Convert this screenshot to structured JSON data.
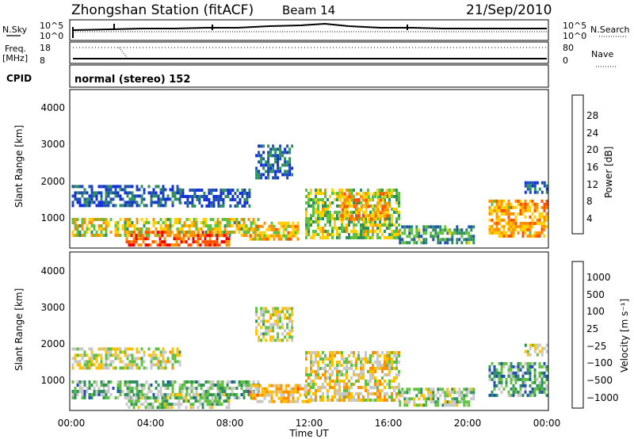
{
  "header": {
    "station": "Zhongshan Station (fitACF)",
    "beam": "Beam 14",
    "date": "21/Sep/2010"
  },
  "aux_panels": {
    "nsky_label": "N.Sky",
    "nsky_ticks": [
      "10^5",
      "10^0"
    ],
    "nsearch_label": "N.Search",
    "nsearch_ticks": [
      "10^5",
      "10^0"
    ],
    "freq_label": "Freq.",
    "freq_unit": "[MHz]",
    "freq_ticks": [
      "18",
      "8"
    ],
    "nave_label": "Nave",
    "nave_ticks": [
      "80",
      "0"
    ],
    "cpid_label": "CPID",
    "cpid_value": "normal (stereo) 152"
  },
  "chart_data": [
    {
      "type": "heatmap",
      "quantity": "power",
      "ylabel": "Slant Range [km]",
      "yticks": [
        "4000",
        "3000",
        "2000",
        "1000"
      ],
      "ylim": [
        180,
        4500
      ],
      "x_range_hours": [
        0,
        24
      ],
      "colorbar_label": "Power [dB]",
      "colorbar_ticks": [
        "28",
        "24",
        "20",
        "16",
        "12",
        "8",
        "4"
      ],
      "colorbar_range": [
        0,
        30
      ],
      "colors": [
        "#1030e0",
        "#2050b0",
        "#2f8f5f",
        "#60c040",
        "#ffd000",
        "#ff9000",
        "#ff5000",
        "#ee0000"
      ],
      "regions": [
        {
          "t": [
            0.1,
            5.5
          ],
          "r": [
            1300,
            1900
          ],
          "v": 6
        },
        {
          "t": [
            5.5,
            9.0
          ],
          "r": [
            1350,
            1800
          ],
          "v": 5
        },
        {
          "t": [
            0.1,
            9.5
          ],
          "r": [
            500,
            1000
          ],
          "v": 16
        },
        {
          "t": [
            2.8,
            8.0
          ],
          "r": [
            250,
            650
          ],
          "v": 24
        },
        {
          "t": [
            9.0,
            11.5
          ],
          "r": [
            400,
            900
          ],
          "v": 18
        },
        {
          "t": [
            9.3,
            11.2
          ],
          "r": [
            2100,
            3000
          ],
          "v": 6
        },
        {
          "t": [
            11.8,
            16.5
          ],
          "r": [
            500,
            1800
          ],
          "v": 14
        },
        {
          "t": [
            13.5,
            16.0
          ],
          "r": [
            1000,
            1700
          ],
          "v": 20
        },
        {
          "t": [
            16.5,
            20.2
          ],
          "r": [
            300,
            800
          ],
          "v": 10
        },
        {
          "t": [
            21.0,
            23.9
          ],
          "r": [
            500,
            1500
          ],
          "v": 20
        },
        {
          "t": [
            22.8,
            23.9
          ],
          "r": [
            1700,
            2000
          ],
          "v": 6
        }
      ]
    },
    {
      "type": "heatmap",
      "quantity": "velocity",
      "ylabel": "Slant Range [km]",
      "yticks": [
        "4000",
        "3000",
        "2000",
        "1000"
      ],
      "ylim": [
        180,
        4500
      ],
      "x_range_hours": [
        0,
        24
      ],
      "colorbar_label": "Velocity [m s⁻¹]",
      "colorbar_ticks": [
        "1000",
        "500",
        "100",
        "25",
        "−25",
        "−100",
        "−500",
        "−1000"
      ],
      "colorbar_range": [
        -1200,
        1200
      ],
      "colors": [
        "#ee0000",
        "#ff5000",
        "#ff9000",
        "#ffc000",
        "#c8c8c8",
        "#60c040",
        "#2f8f5f",
        "#2050b0",
        "#1030e0"
      ],
      "regions": [
        {
          "t": [
            0.1,
            5.5
          ],
          "r": [
            1300,
            1900
          ],
          "v": 0
        },
        {
          "t": [
            9.3,
            11.2
          ],
          "r": [
            2100,
            3000
          ],
          "v": 0
        },
        {
          "t": [
            0.1,
            9.5
          ],
          "r": [
            500,
            1000
          ],
          "v": 300
        },
        {
          "t": [
            2.8,
            8.0
          ],
          "r": [
            250,
            650
          ],
          "v": 200
        },
        {
          "t": [
            9.0,
            12.0
          ],
          "r": [
            400,
            900
          ],
          "v": -300
        },
        {
          "t": [
            11.8,
            16.5
          ],
          "r": [
            500,
            1800
          ],
          "v": -150
        },
        {
          "t": [
            16.5,
            20.2
          ],
          "r": [
            300,
            800
          ],
          "v": 150
        },
        {
          "t": [
            21.0,
            23.9
          ],
          "r": [
            600,
            1500
          ],
          "v": 400
        },
        {
          "t": [
            22.8,
            23.9
          ],
          "r": [
            1700,
            2000
          ],
          "v": 0
        }
      ]
    }
  ],
  "x_axis": {
    "ticks": [
      "00:00",
      "04:00",
      "08:00",
      "12:00",
      "16:00",
      "20:00",
      "00:00"
    ],
    "label": "Time UT"
  }
}
